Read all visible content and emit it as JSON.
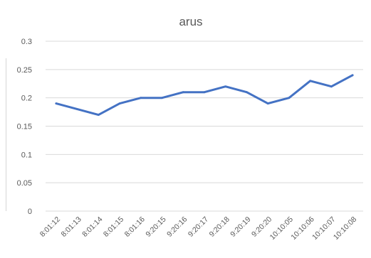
{
  "chart_data": {
    "type": "line",
    "title": "arus",
    "xlabel": "",
    "ylabel": "",
    "categories": [
      "8:01:12",
      "8:01:13",
      "8:01:14",
      "8:01:15",
      "8:01:16",
      "9:20:15",
      "9:20:16",
      "9:20:17",
      "9:20:18",
      "9:20:19",
      "9:20:20",
      "10:10:05",
      "10:10:06",
      "10:10:07",
      "10:10:08"
    ],
    "series": [
      {
        "values": [
          0.19,
          0.18,
          0.17,
          0.19,
          0.2,
          0.2,
          0.21,
          0.21,
          0.22,
          0.21,
          0.19,
          0.2,
          0.23,
          0.22,
          0.24
        ]
      }
    ],
    "ylim": [
      0,
      0.3
    ],
    "yticks": [
      "0",
      "0.05",
      "0.1",
      "0.15",
      "0.2",
      "0.25",
      "0.3"
    ],
    "grid": true,
    "legend": "none",
    "line_color": "#4472C4",
    "grid_color": "#d9d9d9",
    "text_color": "#595959"
  }
}
